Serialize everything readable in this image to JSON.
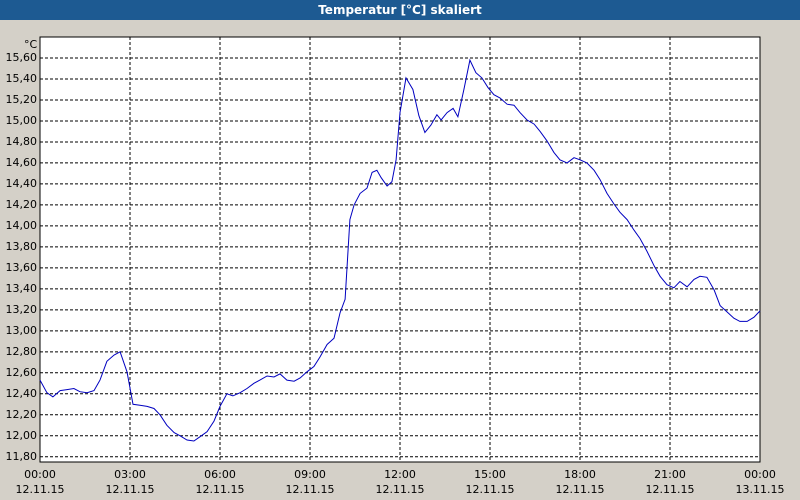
{
  "chart_data": {
    "type": "line",
    "title": "Temperatur [°C] skaliert",
    "y_unit": "°C",
    "x": [
      0,
      0.23,
      0.43,
      0.67,
      0.9,
      1.13,
      1.33,
      1.57,
      1.8,
      2,
      2.23,
      2.47,
      2.67,
      2.9,
      3.1,
      3.33,
      3.57,
      3.8,
      4,
      4.23,
      4.47,
      4.67,
      4.9,
      5.13,
      5.33,
      5.57,
      5.8,
      6,
      6.23,
      6.43,
      6.67,
      6.9,
      7.13,
      7.33,
      7.57,
      7.8,
      8,
      8.23,
      8.47,
      8.67,
      8.9,
      9.13,
      9.33,
      9.57,
      9.8,
      10,
      10.17,
      10.33,
      10.47,
      10.67,
      10.9,
      11.07,
      11.23,
      11.37,
      11.57,
      11.73,
      11.87,
      12,
      12.2,
      12.43,
      12.63,
      12.83,
      13.03,
      13.23,
      13.37,
      13.57,
      13.77,
      13.93,
      14.13,
      14.33,
      14.53,
      14.73,
      14.93,
      15.13,
      15.33,
      15.57,
      15.8,
      16,
      16.23,
      16.47,
      16.67,
      16.9,
      17.13,
      17.33,
      17.57,
      17.8,
      18,
      18.23,
      18.47,
      18.67,
      18.9,
      19.13,
      19.33,
      19.57,
      19.8,
      20,
      20.23,
      20.47,
      20.67,
      20.9,
      21.13,
      21.33,
      21.57,
      21.8,
      22,
      22.23,
      22.47,
      22.67,
      22.9,
      23.13,
      23.33,
      23.57,
      23.8,
      24
    ],
    "series": [
      {
        "name": "Temperatur",
        "color": "#0000c0",
        "values": [
          12.53,
          12.41,
          12.37,
          12.43,
          12.44,
          12.45,
          12.42,
          12.41,
          12.43,
          12.53,
          12.71,
          12.77,
          12.8,
          12.61,
          12.3,
          12.29,
          12.28,
          12.26,
          12.2,
          12.1,
          12.03,
          12,
          11.96,
          11.95,
          11.99,
          12.04,
          12.14,
          12.28,
          12.4,
          12.38,
          12.41,
          12.45,
          12.5,
          12.53,
          12.57,
          12.56,
          12.59,
          12.53,
          12.52,
          12.55,
          12.61,
          12.66,
          12.75,
          12.87,
          12.93,
          13.17,
          13.3,
          14.06,
          14.2,
          14.31,
          14.36,
          14.51,
          14.53,
          14.46,
          14.38,
          14.42,
          14.63,
          15.08,
          15.41,
          15.3,
          15.05,
          14.89,
          14.96,
          15.06,
          15.01,
          15.08,
          15.12,
          15.04,
          15.3,
          15.58,
          15.46,
          15.41,
          15.32,
          15.25,
          15.22,
          15.16,
          15.15,
          15.08,
          15.01,
          14.97,
          14.9,
          14.81,
          14.7,
          14.63,
          14.6,
          14.65,
          14.63,
          14.6,
          14.53,
          14.44,
          14.31,
          14.21,
          14.13,
          14.06,
          13.96,
          13.88,
          13.76,
          13.62,
          13.52,
          13.44,
          13.41,
          13.47,
          13.42,
          13.49,
          13.52,
          13.51,
          13.39,
          13.24,
          13.18,
          13.12,
          13.09,
          13.09,
          13.13,
          13.19
        ]
      }
    ],
    "xlim": [
      0,
      24
    ],
    "xticks": [
      {
        "value": 0,
        "label": "00:00"
      },
      {
        "value": 3,
        "label": "03:00"
      },
      {
        "value": 6,
        "label": "06:00"
      },
      {
        "value": 9,
        "label": "09:00"
      },
      {
        "value": 12,
        "label": "12:00"
      },
      {
        "value": 15,
        "label": "15:00"
      },
      {
        "value": 18,
        "label": "18:00"
      },
      {
        "value": 21,
        "label": "21:00"
      },
      {
        "value": 24,
        "label": "00:00"
      }
    ],
    "xtick_dates": [
      "12.11.15",
      "12.11.15",
      "12.11.15",
      "12.11.15",
      "12.11.15",
      "12.11.15",
      "12.11.15",
      "12.11.15",
      "13.11.15"
    ],
    "ylim": [
      11.75,
      15.8
    ],
    "yticks": [
      {
        "value": 11.8,
        "label": "11,80"
      },
      {
        "value": 12,
        "label": "12,00"
      },
      {
        "value": 12.2,
        "label": "12,20"
      },
      {
        "value": 12.4,
        "label": "12,40"
      },
      {
        "value": 12.6,
        "label": "12,60"
      },
      {
        "value": 12.8,
        "label": "12,80"
      },
      {
        "value": 13,
        "label": "13,00"
      },
      {
        "value": 13.2,
        "label": "13,20"
      },
      {
        "value": 13.4,
        "label": "13,40"
      },
      {
        "value": 13.6,
        "label": "13,60"
      },
      {
        "value": 13.8,
        "label": "13,80"
      },
      {
        "value": 14,
        "label": "14,00"
      },
      {
        "value": 14.2,
        "label": "14,20"
      },
      {
        "value": 14.4,
        "label": "14,40"
      },
      {
        "value": 14.6,
        "label": "14,60"
      },
      {
        "value": 14.8,
        "label": "14,80"
      },
      {
        "value": 15,
        "label": "15,00"
      },
      {
        "value": 15.2,
        "label": "15,20"
      },
      {
        "value": 15.4,
        "label": "15,40"
      },
      {
        "value": 15.6,
        "label": "15,60"
      }
    ],
    "grid": true
  }
}
